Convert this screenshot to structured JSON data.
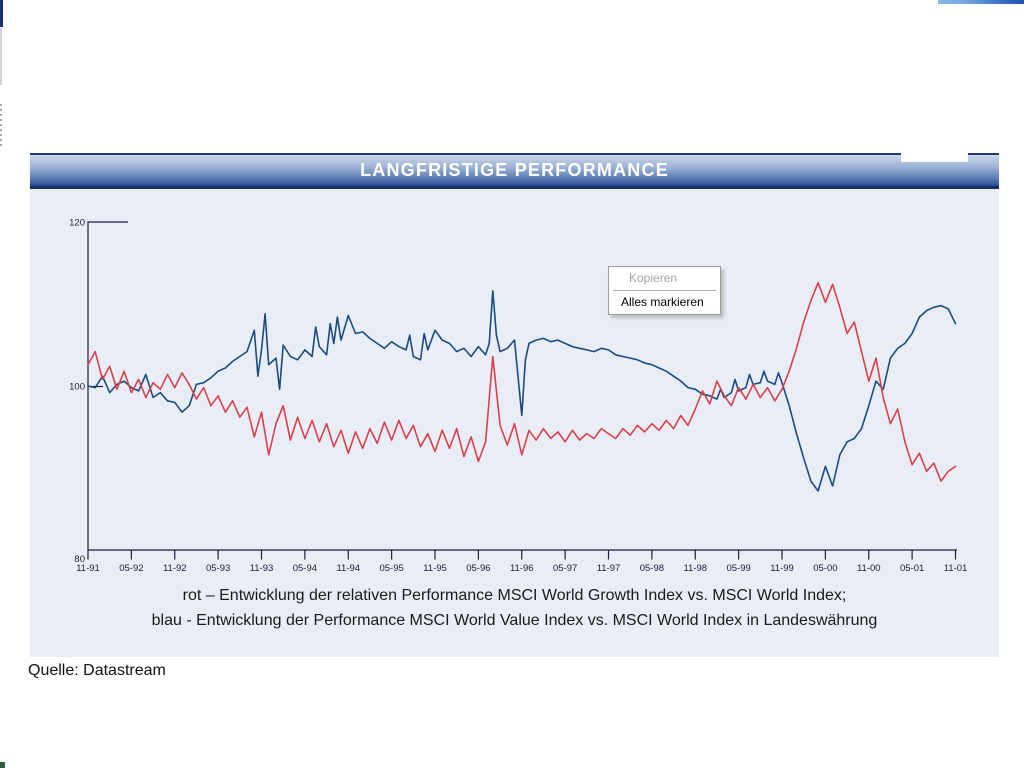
{
  "page": {
    "title_bar": {
      "label": "LANGFRISTIGE PERFORMANCE"
    },
    "caption": {
      "line1": "rot – Entwicklung der relativen Performance MSCI World Growth Index vs. MSCI World Index;",
      "line2": "blau - Entwicklung der Performance MSCI World Value Index vs. MSCI World Index in Landeswährung"
    },
    "source_note": "Quelle: Datastream",
    "colors": {
      "panel_background": "#e9eef6",
      "title_bar_dark": "#27448c",
      "title_bar_light": "#ccd8ea",
      "axis": "#1c1c38",
      "red_series": "#d9404a",
      "blue_series": "#1b4b7f"
    }
  },
  "context_menu": {
    "items": [
      {
        "label": "Kopieren",
        "enabled": false
      },
      {
        "label": "Alles markieren",
        "enabled": true
      }
    ]
  },
  "chart_data": {
    "type": "line",
    "title": "LANGFRISTIGE PERFORMANCE",
    "xlabel": "",
    "ylabel": "",
    "ylim": [
      80,
      120
    ],
    "yticks": [
      120,
      100,
      80
    ],
    "grid": false,
    "legend_position": "none",
    "x_unit": "months since 1991-11 (x tick every 6 months)",
    "x_labels": [
      "11-91",
      "05-92",
      "11-92",
      "05-93",
      "11-93",
      "05-94",
      "11-94",
      "05-95",
      "11-95",
      "05-96",
      "11-96",
      "05-97",
      "11-97",
      "05-98",
      "11-98",
      "05-99",
      "11-99",
      "05-00",
      "11-00",
      "05-01",
      "11-01"
    ],
    "series": [
      {
        "name": "blau - MSCI World Value Index vs. MSCI World Index in Landeswährung",
        "color": "#1b4b7f",
        "points": [
          [
            0,
            100
          ],
          [
            1,
            99.8
          ],
          [
            2,
            101.2
          ],
          [
            3,
            99.2
          ],
          [
            4,
            100.2
          ],
          [
            5,
            100.6
          ],
          [
            6,
            99.8
          ],
          [
            7,
            99.4
          ],
          [
            8,
            101.4
          ],
          [
            9,
            98.6
          ],
          [
            10,
            99.2
          ],
          [
            11,
            98.2
          ],
          [
            12,
            98
          ],
          [
            13,
            96.8
          ],
          [
            14,
            97.6
          ],
          [
            15,
            100.2
          ],
          [
            16,
            100.4
          ],
          [
            17,
            101
          ],
          [
            18,
            101.8
          ],
          [
            19,
            102.2
          ],
          [
            20,
            103
          ],
          [
            21,
            103.6
          ],
          [
            22,
            104.2
          ],
          [
            23,
            106.8
          ],
          [
            23.5,
            101.2
          ],
          [
            24,
            104.4
          ],
          [
            24.5,
            108.8
          ],
          [
            25,
            102.6
          ],
          [
            26,
            103.4
          ],
          [
            26.5,
            99.6
          ],
          [
            27,
            105
          ],
          [
            28,
            103.6
          ],
          [
            29,
            103.2
          ],
          [
            30,
            104.4
          ],
          [
            31,
            103.6
          ],
          [
            31.5,
            107.2
          ],
          [
            32,
            104.8
          ],
          [
            33,
            103.8
          ],
          [
            33.5,
            107.6
          ],
          [
            34,
            105.2
          ],
          [
            34.5,
            108.4
          ],
          [
            35,
            105.6
          ],
          [
            36,
            108.6
          ],
          [
            37,
            106.4
          ],
          [
            38,
            106.6
          ],
          [
            39,
            105.8
          ],
          [
            40,
            105.2
          ],
          [
            41,
            104.6
          ],
          [
            42,
            105.4
          ],
          [
            43,
            104.8
          ],
          [
            44,
            104.4
          ],
          [
            44.5,
            106.2
          ],
          [
            45,
            103.6
          ],
          [
            46,
            103.2
          ],
          [
            46.5,
            106.4
          ],
          [
            47,
            104.4
          ],
          [
            48,
            106.8
          ],
          [
            49,
            105.6
          ],
          [
            50,
            105.2
          ],
          [
            51,
            104.2
          ],
          [
            52,
            104.6
          ],
          [
            53,
            103.6
          ],
          [
            54,
            104.8
          ],
          [
            55,
            103.8
          ],
          [
            55.5,
            105.2
          ],
          [
            56,
            111.6
          ],
          [
            56.5,
            106.2
          ],
          [
            57,
            104.2
          ],
          [
            58,
            104.6
          ],
          [
            59,
            105.6
          ],
          [
            60,
            96.4
          ],
          [
            60.5,
            103.2
          ],
          [
            61,
            105.2
          ],
          [
            62,
            105.6
          ],
          [
            63,
            105.8
          ],
          [
            64,
            105.4
          ],
          [
            65,
            105.6
          ],
          [
            66,
            105.2
          ],
          [
            67,
            104.8
          ],
          [
            68,
            104.6
          ],
          [
            69,
            104.4
          ],
          [
            70,
            104.2
          ],
          [
            71,
            104.6
          ],
          [
            72,
            104.4
          ],
          [
            73,
            103.8
          ],
          [
            74,
            103.6
          ],
          [
            75,
            103.4
          ],
          [
            76,
            103.2
          ],
          [
            77,
            102.8
          ],
          [
            78,
            102.6
          ],
          [
            79,
            102.2
          ],
          [
            80,
            101.8
          ],
          [
            81,
            101.2
          ],
          [
            82,
            100.6
          ],
          [
            83,
            99.8
          ],
          [
            84,
            99.6
          ],
          [
            85,
            99
          ],
          [
            86,
            98.8
          ],
          [
            87,
            98.4
          ],
          [
            87.5,
            99.6
          ],
          [
            88,
            98.6
          ],
          [
            89,
            99.2
          ],
          [
            89.5,
            100.8
          ],
          [
            90,
            99.4
          ],
          [
            91,
            99.8
          ],
          [
            91.5,
            101.4
          ],
          [
            92,
            100.2
          ],
          [
            93,
            100.4
          ],
          [
            93.5,
            101.8
          ],
          [
            94,
            100.6
          ],
          [
            95,
            100.2
          ],
          [
            95.5,
            101.6
          ],
          [
            96,
            100.4
          ],
          [
            97,
            97.6
          ],
          [
            98,
            94.2
          ],
          [
            99,
            91.2
          ],
          [
            100,
            88.4
          ],
          [
            101,
            87.2
          ],
          [
            102,
            90.2
          ],
          [
            103,
            87.8
          ],
          [
            104,
            91.6
          ],
          [
            105,
            93.2
          ],
          [
            106,
            93.6
          ],
          [
            107,
            94.8
          ],
          [
            108,
            97.6
          ],
          [
            109,
            100.6
          ],
          [
            110,
            99.6
          ],
          [
            111,
            103.4
          ],
          [
            112,
            104.6
          ],
          [
            113,
            105.2
          ],
          [
            114,
            106.4
          ],
          [
            115,
            108.4
          ],
          [
            116,
            109.2
          ],
          [
            117,
            109.6
          ],
          [
            118,
            109.8
          ],
          [
            119,
            109.4
          ],
          [
            120,
            107.6
          ]
        ]
      },
      {
        "name": "rot – relative Performance MSCI World Growth Index vs. MSCI World Index",
        "color": "#d9404a",
        "points": [
          [
            0,
            102.6
          ],
          [
            1,
            104.2
          ],
          [
            2,
            100.8
          ],
          [
            3,
            102.4
          ],
          [
            4,
            99.6
          ],
          [
            5,
            101.8
          ],
          [
            6,
            99.2
          ],
          [
            7,
            100.8
          ],
          [
            8,
            98.6
          ],
          [
            9,
            100.4
          ],
          [
            10,
            99.6
          ],
          [
            11,
            101.4
          ],
          [
            12,
            99.8
          ],
          [
            13,
            101.6
          ],
          [
            14,
            100.2
          ],
          [
            15,
            98.4
          ],
          [
            16,
            99.8
          ],
          [
            17,
            97.6
          ],
          [
            18,
            98.8
          ],
          [
            19,
            96.8
          ],
          [
            20,
            98.2
          ],
          [
            21,
            96.2
          ],
          [
            22,
            97.4
          ],
          [
            23,
            93.8
          ],
          [
            24,
            96.8
          ],
          [
            25,
            91.6
          ],
          [
            26,
            95.4
          ],
          [
            27,
            97.6
          ],
          [
            28,
            93.4
          ],
          [
            29,
            96.2
          ],
          [
            30,
            93.6
          ],
          [
            31,
            95.8
          ],
          [
            32,
            93.2
          ],
          [
            33,
            95.4
          ],
          [
            34,
            92.6
          ],
          [
            35,
            94.6
          ],
          [
            36,
            91.8
          ],
          [
            37,
            94.4
          ],
          [
            38,
            92.4
          ],
          [
            39,
            94.8
          ],
          [
            40,
            93
          ],
          [
            41,
            95.6
          ],
          [
            42,
            93.4
          ],
          [
            43,
            95.8
          ],
          [
            44,
            93.6
          ],
          [
            45,
            95.2
          ],
          [
            46,
            92.6
          ],
          [
            47,
            94.2
          ],
          [
            48,
            92
          ],
          [
            49,
            94.6
          ],
          [
            50,
            92.4
          ],
          [
            51,
            94.8
          ],
          [
            52,
            91.4
          ],
          [
            53,
            93.8
          ],
          [
            54,
            90.8
          ],
          [
            55,
            93.2
          ],
          [
            56,
            103.6
          ],
          [
            57,
            95.2
          ],
          [
            58,
            92.8
          ],
          [
            59,
            95.4
          ],
          [
            60,
            91.6
          ],
          [
            61,
            94.6
          ],
          [
            62,
            93.4
          ],
          [
            63,
            94.8
          ],
          [
            64,
            93.6
          ],
          [
            65,
            94.4
          ],
          [
            66,
            93.2
          ],
          [
            67,
            94.6
          ],
          [
            68,
            93.4
          ],
          [
            69,
            94.2
          ],
          [
            70,
            93.6
          ],
          [
            71,
            94.8
          ],
          [
            72,
            94.2
          ],
          [
            73,
            93.6
          ],
          [
            74,
            94.8
          ],
          [
            75,
            94
          ],
          [
            76,
            95.2
          ],
          [
            77,
            94.4
          ],
          [
            78,
            95.4
          ],
          [
            79,
            94.6
          ],
          [
            80,
            95.8
          ],
          [
            81,
            94.8
          ],
          [
            82,
            96.4
          ],
          [
            83,
            95.2
          ],
          [
            84,
            97.2
          ],
          [
            85,
            99.4
          ],
          [
            86,
            97.8
          ],
          [
            87,
            100.6
          ],
          [
            88,
            98.8
          ],
          [
            89,
            97.6
          ],
          [
            90,
            99.8
          ],
          [
            91,
            98.4
          ],
          [
            92,
            100.2
          ],
          [
            93,
            98.6
          ],
          [
            94,
            99.8
          ],
          [
            95,
            98.2
          ],
          [
            96,
            99.6
          ],
          [
            97,
            101.8
          ],
          [
            98,
            104.6
          ],
          [
            99,
            107.8
          ],
          [
            100,
            110.4
          ],
          [
            101,
            112.6
          ],
          [
            102,
            110.2
          ],
          [
            103,
            112.4
          ],
          [
            104,
            109.6
          ],
          [
            105,
            106.4
          ],
          [
            106,
            107.8
          ],
          [
            107,
            104.2
          ],
          [
            108,
            100.6
          ],
          [
            109,
            103.4
          ],
          [
            110,
            98.6
          ],
          [
            111,
            95.4
          ],
          [
            112,
            97.2
          ],
          [
            113,
            93.2
          ],
          [
            114,
            90.4
          ],
          [
            115,
            91.8
          ],
          [
            116,
            89.6
          ],
          [
            117,
            90.6
          ],
          [
            118,
            88.4
          ],
          [
            119,
            89.6
          ],
          [
            120,
            90.2
          ]
        ]
      }
    ]
  }
}
